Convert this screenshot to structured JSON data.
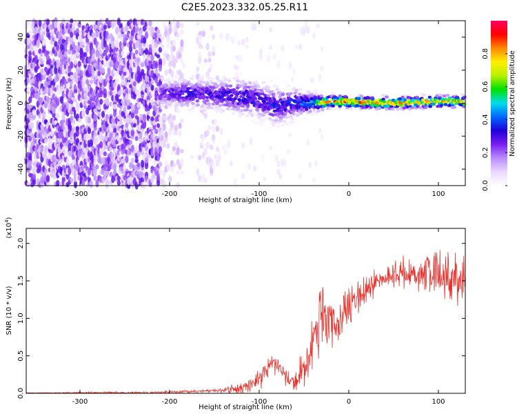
{
  "title": "C2E5.2023.332.05.25.R11",
  "chart_data": [
    {
      "type": "heatmap",
      "xlabel": "Height of straight line (km)",
      "ylabel": "Frequency (Hz)",
      "xlim": [
        -360,
        130
      ],
      "ylim": [
        -50,
        50
      ],
      "xticks": [
        -300,
        -200,
        -100,
        0,
        100
      ],
      "yticks": [
        -40,
        -20,
        0,
        20,
        40
      ],
      "colorbar": {
        "label": "Normalized spectral amplitude",
        "range": [
          0,
          1
        ],
        "ticks": [
          "0.0",
          "0.2",
          "0.4",
          "0.6",
          "0.8"
        ],
        "colors": [
          "#ffffff",
          "#e9d8ff",
          "#b98cff",
          "#7a1ff0",
          "#1e00d8",
          "#0066ff",
          "#00ddee",
          "#00e000",
          "#b8f000",
          "#ffee00",
          "#ff8800",
          "#ff0000",
          "#ff0060"
        ]
      },
      "ridge": [
        {
          "x": -205,
          "f": 6,
          "amp": 0.28,
          "width": 4
        },
        {
          "x": -180,
          "f": 6,
          "amp": 0.3,
          "width": 5
        },
        {
          "x": -150,
          "f": 5,
          "amp": 0.3,
          "width": 5
        },
        {
          "x": -120,
          "f": 4,
          "amp": 0.32,
          "width": 6
        },
        {
          "x": -100,
          "f": 2,
          "amp": 0.33,
          "width": 6
        },
        {
          "x": -80,
          "f": -2,
          "amp": 0.32,
          "width": 6
        },
        {
          "x": -60,
          "f": 0,
          "amp": 0.35,
          "width": 5
        },
        {
          "x": -40,
          "f": 0,
          "amp": 0.45,
          "width": 3
        },
        {
          "x": -20,
          "f": 1,
          "amp": 0.8,
          "width": 2
        },
        {
          "x": 0,
          "f": 1,
          "amp": 0.82,
          "width": 2
        },
        {
          "x": 50,
          "f": 0,
          "amp": 0.78,
          "width": 2
        },
        {
          "x": 100,
          "f": 1,
          "amp": 0.75,
          "width": 2
        },
        {
          "x": 130,
          "f": 1,
          "amp": 0.72,
          "width": 2
        }
      ]
    },
    {
      "type": "line",
      "xlabel": "Height of straight line (km)",
      "ylabel": "SNR (10 * v/v)",
      "yscale_label": "(x10^4)",
      "xlim": [
        -360,
        130
      ],
      "ylim": [
        0,
        2.2
      ],
      "xticks": [
        -300,
        -200,
        -100,
        0,
        100
      ],
      "yticks": [
        "0.0",
        "0.5",
        "1.0",
        "1.5",
        "2.0"
      ],
      "color": "#e8302a",
      "envelope": {
        "x": [
          -360,
          -220,
          -160,
          -120,
          -100,
          -85,
          -75,
          -62,
          -55,
          -45,
          -40,
          -30,
          -20,
          -10,
          0,
          10,
          25,
          40,
          60,
          80,
          100,
          115,
          130
        ],
        "y": [
          0.005,
          0.01,
          0.03,
          0.06,
          0.18,
          0.42,
          0.35,
          0.12,
          0.2,
          0.5,
          0.8,
          1.0,
          0.85,
          0.95,
          1.1,
          1.25,
          1.45,
          1.55,
          1.6,
          1.6,
          1.58,
          1.55,
          1.5
        ]
      },
      "noise": {
        "x": [
          -360,
          -150,
          -100,
          -60,
          -40,
          -20,
          0,
          40,
          100,
          130
        ],
        "amp": [
          0.005,
          0.02,
          0.12,
          0.12,
          0.45,
          0.4,
          0.3,
          0.12,
          0.3,
          0.3
        ]
      }
    }
  ]
}
